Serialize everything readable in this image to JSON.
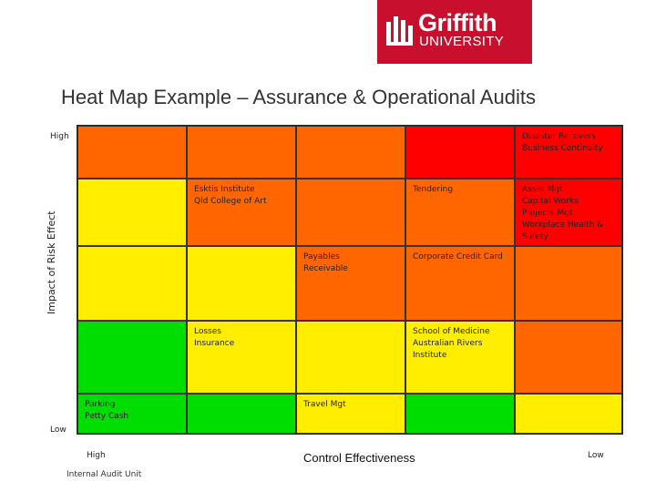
{
  "logo": {
    "name": "Griffith",
    "sub": "UNIVERSITY",
    "color": "#c8102e",
    "icon": "griffith-crest-icon"
  },
  "title": "Heat Map Example – Assurance & Operational Audits",
  "y_axis": {
    "label": "Impact of Risk Effect",
    "high": "High",
    "low": "Low"
  },
  "x_axis": {
    "label": "Control Effectiveness",
    "high": "High",
    "low": "Low"
  },
  "footer": "Internal Audit Unit",
  "colors": {
    "red": "#ff0000",
    "orange": "#ff6600",
    "yellow": "#ffee00",
    "green": "#00dd00"
  },
  "heatmap": {
    "rows": [
      [
        {
          "color": "orange",
          "lines": []
        },
        {
          "color": "orange",
          "lines": []
        },
        {
          "color": "orange",
          "lines": []
        },
        {
          "color": "red",
          "lines": []
        },
        {
          "color": "red",
          "lines": [
            "Disaster Recovery",
            "Business Continuity"
          ]
        }
      ],
      [
        {
          "color": "yellow",
          "lines": []
        },
        {
          "color": "orange",
          "lines": [
            "Esktis Institute",
            "Qld College of Art"
          ]
        },
        {
          "color": "orange",
          "lines": []
        },
        {
          "color": "orange",
          "lines": [
            "Tendering"
          ]
        },
        {
          "color": "red",
          "lines": [
            "Asset Mgt",
            "Capital Works",
            "Projects Mgt",
            "Workplace Health &",
            "Safety"
          ]
        }
      ],
      [
        {
          "color": "yellow",
          "lines": []
        },
        {
          "color": "yellow",
          "lines": []
        },
        {
          "color": "orange",
          "lines": [
            "Payables",
            "Receivable"
          ]
        },
        {
          "color": "orange",
          "lines": [
            "Corporate Credit Card"
          ]
        },
        {
          "color": "orange",
          "lines": []
        }
      ],
      [
        {
          "color": "green",
          "lines": []
        },
        {
          "color": "yellow",
          "lines": [
            "Losses",
            "Insurance"
          ]
        },
        {
          "color": "yellow",
          "lines": []
        },
        {
          "color": "yellow",
          "lines": [
            "School of Medicine",
            "Australian Rivers",
            "Institute"
          ]
        },
        {
          "color": "orange",
          "lines": []
        }
      ],
      [
        {
          "color": "green",
          "lines": [
            "Parking",
            "Petty Cash"
          ]
        },
        {
          "color": "green",
          "lines": []
        },
        {
          "color": "yellow",
          "lines": [
            "Travel Mgt"
          ]
        },
        {
          "color": "green",
          "lines": []
        },
        {
          "color": "yellow",
          "lines": []
        }
      ]
    ]
  }
}
